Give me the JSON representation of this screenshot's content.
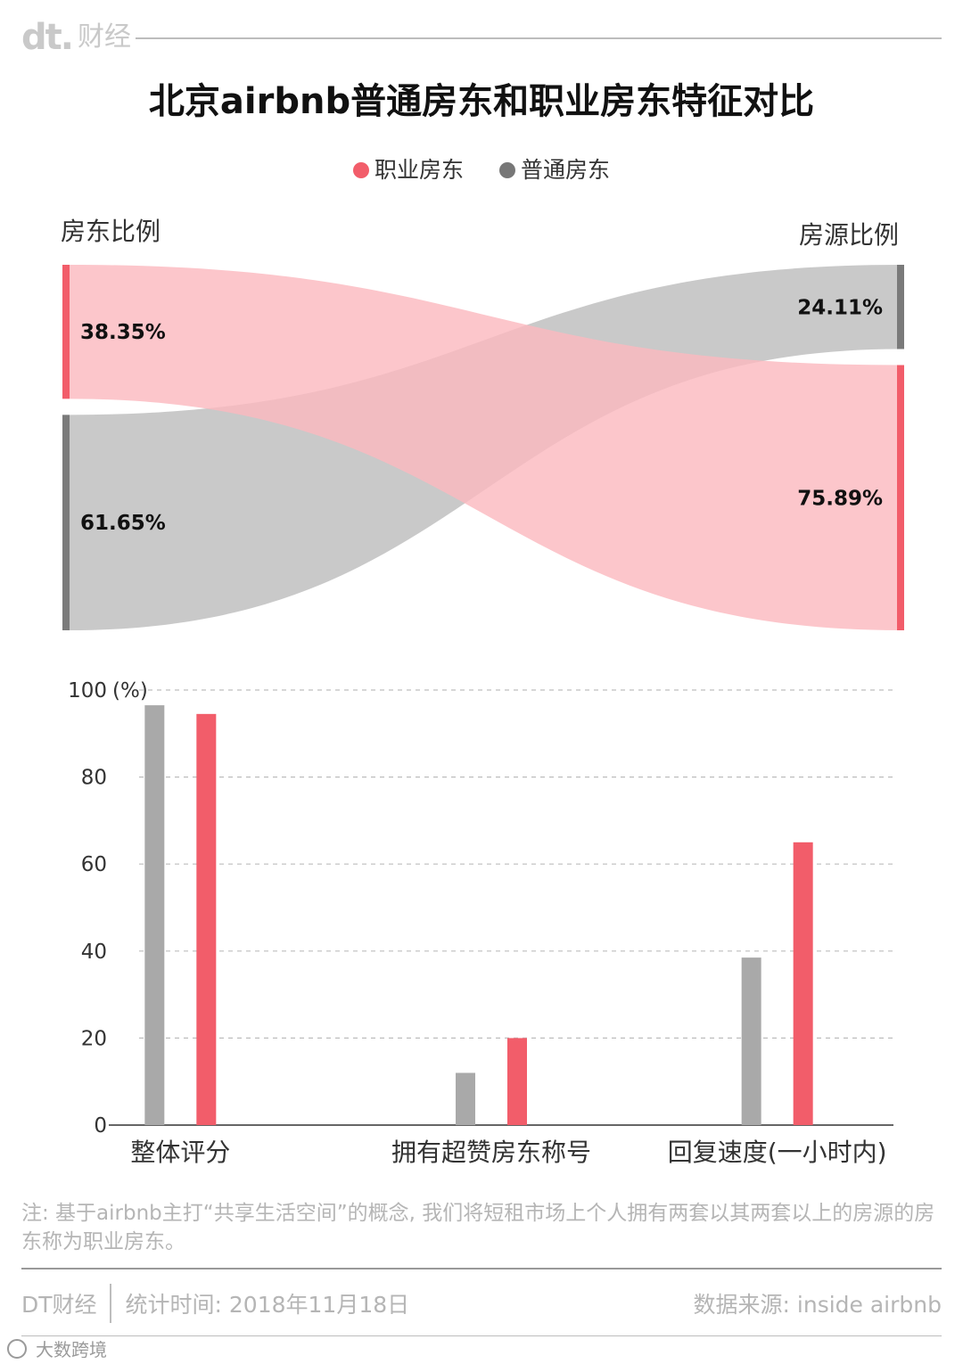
{
  "brand": {
    "logo": "dt.",
    "name": "财经"
  },
  "title": "北京airbnb普通房东和职业房东特征对比",
  "legend": [
    {
      "label": "职业房东",
      "color": "#f25d6a"
    },
    {
      "label": "普通房东",
      "color": "#777777"
    }
  ],
  "colors": {
    "pro": "#f25d6a",
    "regular": "#a9a9a9",
    "pro_flow": "#fbb9bf",
    "regular_flow": "#c6c6c6",
    "regular_bar": "#7a7a7a"
  },
  "chart_data": [
    {
      "type": "sankey",
      "left_title": "房东比例",
      "right_title": "房源比例",
      "left_nodes": [
        {
          "series": "职业房东",
          "value": 38.35,
          "label": "38.35%"
        },
        {
          "series": "普通房东",
          "value": 61.65,
          "label": "61.65%"
        }
      ],
      "right_nodes": [
        {
          "series": "普通房东",
          "value": 24.11,
          "label": "24.11%"
        },
        {
          "series": "职业房东",
          "value": 75.89,
          "label": "75.89%"
        }
      ]
    },
    {
      "type": "bar",
      "ylabel": "(%)",
      "ylim": [
        0,
        100
      ],
      "yticks": [
        0,
        20,
        40,
        60,
        80,
        100
      ],
      "grid": true,
      "categories": [
        "整体评分",
        "拥有超赞房东称号",
        "回复速度(一小时内)"
      ],
      "series": [
        {
          "name": "普通房东",
          "values": [
            96.5,
            12,
            38.5
          ]
        },
        {
          "name": "职业房东",
          "values": [
            94.5,
            20,
            65
          ]
        }
      ]
    }
  ],
  "note": "注: 基于airbnb主打“共享生活空间”的概念, 我们将短租市场上个人拥有两套以其两套以上的房源的房东称为职业房东。",
  "footer": {
    "brand": "DT财经",
    "stat_time": "统计时间: 2018年11月18日",
    "source": "数据来源: inside airbnb"
  },
  "watermark": "大数跨境"
}
